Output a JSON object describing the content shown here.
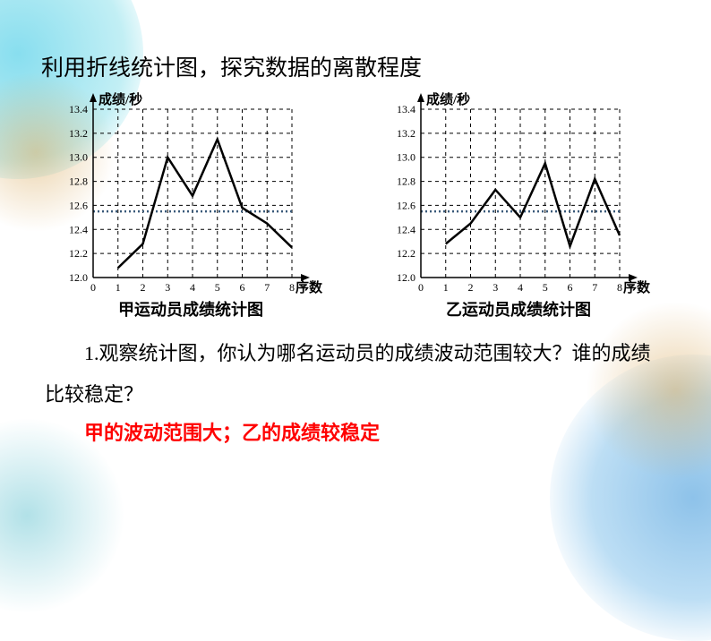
{
  "title": "利用折线统计图，探究数据的离散程度",
  "charts": {
    "ylabel": "成绩/秒",
    "xlabel": "序数",
    "ylim": [
      12.0,
      13.4
    ],
    "ytick_step": 0.2,
    "xlim": [
      0,
      8
    ],
    "xtick_step": 1,
    "grid_color": "#000000",
    "grid_dash": "4 4",
    "line_color": "#000000",
    "line_width": 2.5,
    "ref_line_y": 12.55,
    "ref_line_color": "#3a5a7a",
    "yticks": [
      "12.0",
      "12.2",
      "12.4",
      "12.6",
      "12.8",
      "13.0",
      "13.2",
      "13.4"
    ],
    "xticks": [
      "0",
      "1",
      "2",
      "3",
      "4",
      "5",
      "6",
      "7",
      "8"
    ],
    "left": {
      "caption": "甲运动员成绩统计图",
      "values": [
        12.08,
        12.28,
        13.0,
        12.68,
        13.15,
        12.58,
        12.45,
        12.25
      ]
    },
    "right": {
      "caption": "乙运动员成绩统计图",
      "values": [
        12.28,
        12.45,
        12.73,
        12.5,
        12.95,
        12.26,
        12.82,
        12.35
      ]
    }
  },
  "question": "1.观察统计图，你认为哪名运动员的成绩波动范围较大？谁的成绩比较稳定？",
  "answer": "甲的波动范围大；乙的成绩较稳定"
}
